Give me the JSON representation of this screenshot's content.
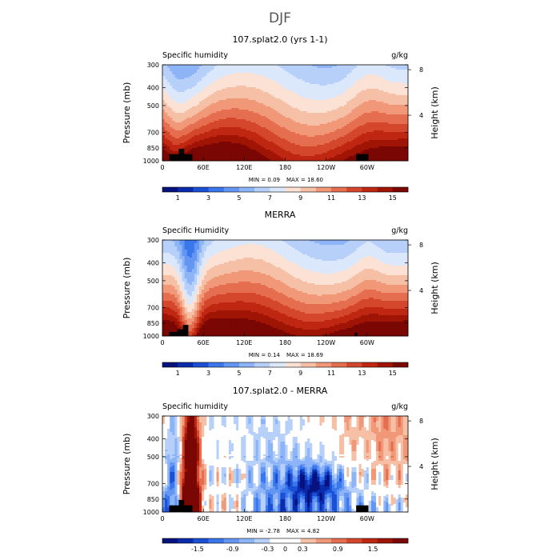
{
  "figure_title": "DJF",
  "chart_data": [
    {
      "type": "heatmap",
      "title": "107.splat2.0 (yrs 1-1)",
      "field_label": "Specific humidity",
      "units": "g/kg",
      "xlabel": "",
      "ylabel": "Pressure (mb)",
      "ylabel_right": "Height (km)",
      "xticks": [
        "0",
        "60E",
        "120E",
        "180",
        "120W",
        "60W"
      ],
      "xlim_degrees_east": [
        0,
        360
      ],
      "yticks": [
        "300",
        "400",
        "500",
        "700",
        "850",
        "1000"
      ],
      "ylim_mb": [
        1000,
        300
      ],
      "height_ticks_km": [
        "8",
        "4"
      ],
      "min_text": "MIN =    0.09",
      "max_text": "MAX =   18.60",
      "min": 0.09,
      "max": 18.6,
      "colorbar_ticks": [
        "1",
        "3",
        "5",
        "7",
        "9",
        "11",
        "13",
        "15"
      ],
      "colorbar_range": [
        0,
        16
      ],
      "palette": "blue-white-red",
      "surface_blocks": [
        {
          "lon_start": 10,
          "lon_end": 24,
          "p_top": 920
        },
        {
          "lon_start": 24,
          "lon_end": 32,
          "p_top": 860
        },
        {
          "lon_start": 32,
          "lon_end": 44,
          "p_top": 920
        },
        {
          "lon_start": 284,
          "lon_end": 292,
          "p_top": 920
        },
        {
          "lon_start": 292,
          "lon_end": 302,
          "p_top": 920
        }
      ]
    },
    {
      "type": "heatmap",
      "title": "MERRA",
      "field_label": "Specific Humidity",
      "units": "g/kg",
      "xlabel": "",
      "ylabel": "Pressure (mb)",
      "ylabel_right": "Height (km)",
      "xticks": [
        "0",
        "60E",
        "120E",
        "180",
        "120W",
        "60W"
      ],
      "xlim_degrees_east": [
        0,
        360
      ],
      "yticks": [
        "300",
        "400",
        "500",
        "700",
        "850",
        "1000"
      ],
      "ylim_mb": [
        1000,
        300
      ],
      "height_ticks_km": [
        "8",
        "4"
      ],
      "min_text": "MIN =    0.14",
      "max_text": "MAX =   18.69",
      "min": 0.14,
      "max": 18.69,
      "colorbar_ticks": [
        "1",
        "3",
        "5",
        "7",
        "9",
        "11",
        "13",
        "15"
      ],
      "colorbar_range": [
        0,
        16
      ],
      "palette": "blue-white-red",
      "surface_blocks": [
        {
          "lon_start": 10,
          "lon_end": 22,
          "p_top": 950
        },
        {
          "lon_start": 22,
          "lon_end": 30,
          "p_top": 920
        },
        {
          "lon_start": 30,
          "lon_end": 38,
          "p_top": 870
        },
        {
          "lon_start": 282,
          "lon_end": 286,
          "p_top": 960
        }
      ]
    },
    {
      "type": "heatmap",
      "title": "107.splat2.0 - MERRA",
      "field_label": "Specific humidity",
      "units": "g/kg",
      "xlabel": "",
      "ylabel": "Pressure (mb)",
      "ylabel_right": "Height (km)",
      "xticks": [
        "0",
        "60E",
        "120E",
        "180",
        "120W",
        "60W"
      ],
      "xlim_degrees_east": [
        0,
        360
      ],
      "yticks": [
        "300",
        "400",
        "500",
        "700",
        "850",
        "1000"
      ],
      "ylim_mb": [
        1000,
        300
      ],
      "height_ticks_km": [
        "8",
        "4"
      ],
      "min_text": "MIN =   -2.78",
      "max_text": "MAX =    4.82",
      "min": -2.78,
      "max": 4.82,
      "colorbar_ticks": [
        "-1.5",
        "-0.9",
        "-0.3",
        "0",
        "0.3",
        "0.9",
        "1.5"
      ],
      "colorbar_range": [
        -2.1,
        2.1
      ],
      "palette": "blue-white-red-diverging",
      "surface_blocks": [
        {
          "lon_start": 10,
          "lon_end": 24,
          "p_top": 920
        },
        {
          "lon_start": 24,
          "lon_end": 32,
          "p_top": 860
        },
        {
          "lon_start": 32,
          "lon_end": 44,
          "p_top": 920
        },
        {
          "lon_start": 284,
          "lon_end": 292,
          "p_top": 920
        },
        {
          "lon_start": 292,
          "lon_end": 302,
          "p_top": 920
        }
      ]
    }
  ],
  "colors": {
    "seq": [
      "#08127e",
      "#0a2bab",
      "#1a4fd6",
      "#3a77ec",
      "#6396f3",
      "#8db4f7",
      "#b6d0fa",
      "#dbe8fc",
      "#fbe2d4",
      "#f6c0a6",
      "#f09878",
      "#e46e4f",
      "#d4472c",
      "#bf2712",
      "#a01405",
      "#7a0703"
    ],
    "div": [
      "#08127e",
      "#0a2bab",
      "#1a4fd6",
      "#3a77ec",
      "#6396f3",
      "#8db4f7",
      "#b6d0fa",
      "#ffffff",
      "#ffffff",
      "#f6c0a6",
      "#f09878",
      "#e46e4f",
      "#d4472c",
      "#bf2712",
      "#a01405",
      "#7a0703"
    ]
  }
}
